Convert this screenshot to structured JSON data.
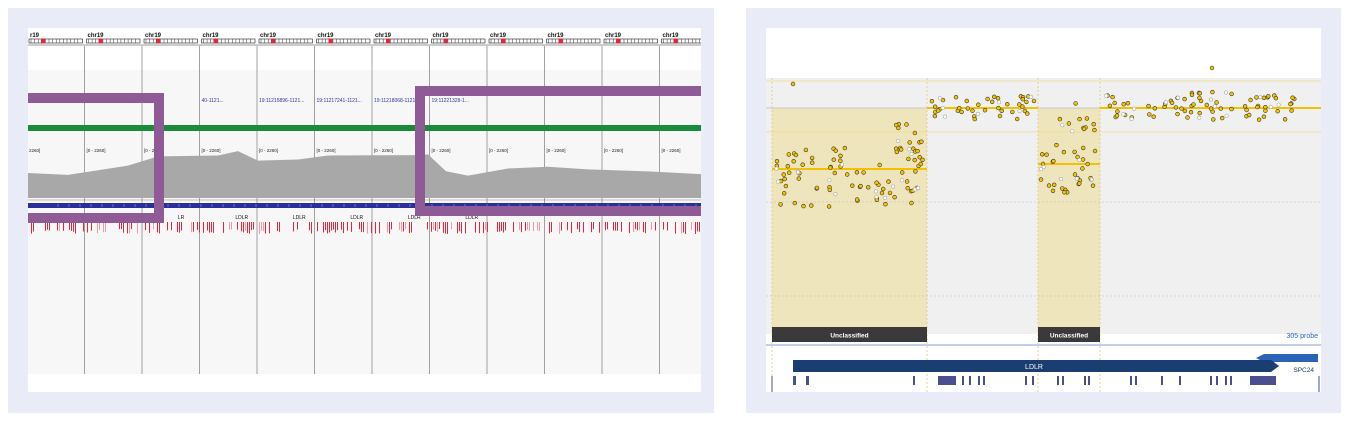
{
  "left_panel": {
    "chrom_labels": [
      "r19",
      "chr19",
      "chr19",
      "chr19",
      "chr19",
      "chr19",
      "chr19",
      "chr19",
      "chr19",
      "chr19",
      "chr19",
      "chr19"
    ],
    "feature_labels": [
      "",
      "",
      "",
      "40-1121...",
      "19:11215896-1121...",
      "19:11217241-1121...",
      "19:11218068-1121...",
      "19:11221328-1...",
      "",
      "",
      "",
      ""
    ],
    "coverage_ranges": [
      "2260]",
      "[0 - 2260]",
      "[0 - 22",
      "[0 - 2260]",
      "[0 - 2260]",
      "[0 - 2260]",
      "[0 - 2260]",
      "[0 - 2260]",
      "[0 - 2260]",
      "[0 - 2260]",
      "[0 - 2260]",
      "[0 - 2260]"
    ],
    "gene_labels": [
      "",
      "",
      "LR",
      "LDLR",
      "LDLR",
      "LDLR",
      "LDLR",
      "LDLR"
    ],
    "colors": {
      "highlight": "#8e5b97",
      "coverage": "#a8a8a8",
      "green_track": "#1b8a3a",
      "gene": "#2a2f9a",
      "variant": "#e3263b"
    }
  },
  "right_panel": {
    "unclassified_labels": [
      "Unclassified",
      "Unclassified"
    ],
    "probe_count": "305 probe",
    "gene_name": "LDLR",
    "neighbor_gene": "SPC24",
    "colors": {
      "segment": "#f2c200",
      "point": "#f5c400",
      "region": "#efe5bd",
      "dark_gene": "#1b3e72",
      "neighbor_gene": "#2a63b8"
    }
  }
}
